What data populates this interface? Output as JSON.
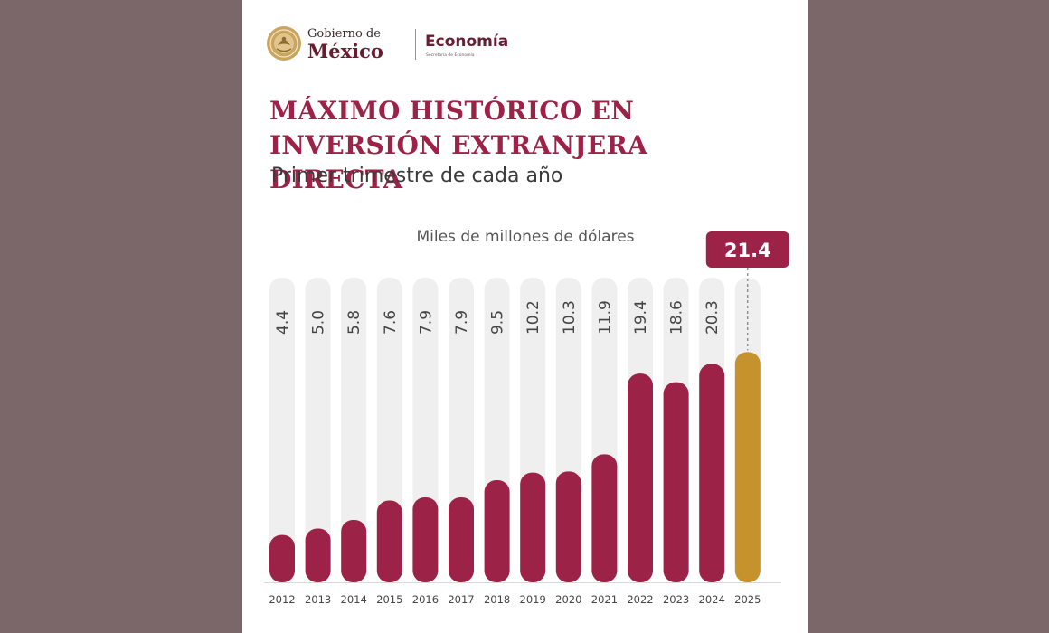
{
  "logo": {
    "line1": "Gobierno de",
    "line2": "México",
    "secretaria": "Economía",
    "secretaria_sub": "Secretaría de Economía"
  },
  "colors": {
    "background": "#7b6669",
    "card": "#ffffff",
    "bar": "#9c2247",
    "highlight": "#c6922c",
    "track": "#efefef",
    "label_box": "#9c2247"
  },
  "chart_data": {
    "type": "bar",
    "title": "MÁXIMO HISTÓRICO EN INVERSIÓN EXTRANJERA DIRECTA",
    "subtitle": "Primer trimestre de cada año",
    "ylabel": "Miles de millones de dólares",
    "categories": [
      "2012",
      "2013",
      "2014",
      "2015",
      "2016",
      "2017",
      "2018",
      "2019",
      "2020",
      "2021",
      "2022",
      "2023",
      "2024",
      "2025"
    ],
    "values": [
      4.4,
      5.0,
      5.8,
      7.6,
      7.9,
      7.9,
      9.5,
      10.2,
      10.3,
      11.9,
      19.4,
      18.6,
      20.3,
      21.4
    ],
    "labels": [
      "4.4",
      "5.0",
      "5.8",
      "7.6",
      "7.9",
      "7.9",
      "9.5",
      "10.2",
      "10.3",
      "11.9",
      "19.4",
      "18.6",
      "20.3",
      "21.4"
    ],
    "highlight_index": 13,
    "ylim": [
      0,
      26
    ],
    "grid": false
  }
}
